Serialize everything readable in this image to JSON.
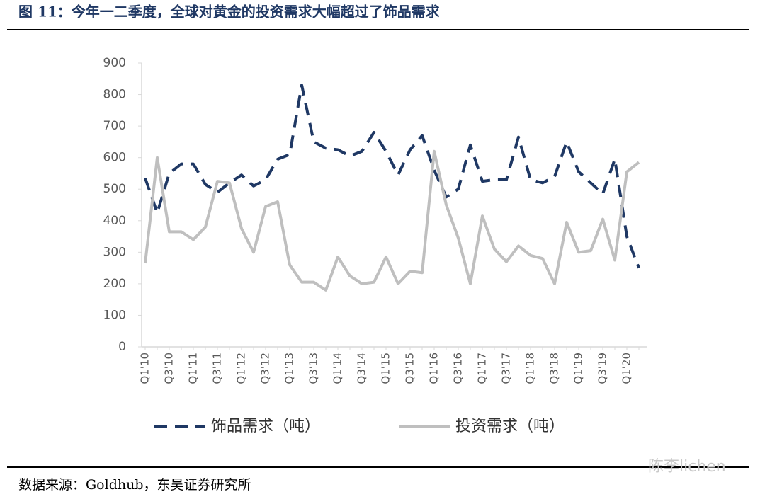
{
  "chart_data": {
    "type": "line",
    "title": "图 11：今年一二季度，全球对黄金的投资需求大幅超过了饰品需求",
    "source": "数据来源：Goldhub，东吴证券研究所",
    "watermark": "陈李lichen",
    "categories": [
      "Q1'10",
      null,
      "Q3'10",
      null,
      "Q1'11",
      null,
      "Q3'11",
      null,
      "Q1'12",
      null,
      "Q3'12",
      null,
      "Q1'13",
      null,
      "Q3'13",
      null,
      "Q1'14",
      null,
      "Q3'14",
      null,
      "Q1'15",
      null,
      "Q3'15",
      null,
      "Q1'16",
      null,
      "Q3'16",
      null,
      "Q1'17",
      null,
      "Q3'17",
      null,
      "Q1'18",
      null,
      "Q3'18",
      null,
      "Q1'19",
      null,
      "Q3'19",
      null,
      "Q1'20",
      null
    ],
    "series": [
      {
        "name": "饰品需求（吨）",
        "color": "#1f3864",
        "dashed": true,
        "values": [
          535,
          425,
          550,
          580,
          580,
          515,
          490,
          520,
          545,
          510,
          530,
          595,
          610,
          830,
          650,
          630,
          625,
          605,
          620,
          680,
          620,
          545,
          625,
          670,
          560,
          475,
          500,
          640,
          525,
          530,
          530,
          665,
          530,
          520,
          540,
          650,
          555,
          520,
          485,
          595,
          350,
          250
        ]
      },
      {
        "name": "投资需求（吨）",
        "color": "#bfbfbf",
        "dashed": false,
        "values": [
          265,
          600,
          365,
          365,
          340,
          380,
          525,
          520,
          375,
          300,
          445,
          460,
          260,
          205,
          205,
          180,
          285,
          225,
          200,
          205,
          285,
          200,
          240,
          235,
          620,
          450,
          345,
          200,
          415,
          310,
          270,
          320,
          290,
          280,
          200,
          395,
          300,
          305,
          405,
          275,
          555,
          585
        ]
      }
    ],
    "ylim": [
      0,
      900
    ],
    "yticks": [
      0,
      100,
      200,
      300,
      400,
      500,
      600,
      700,
      800,
      900
    ],
    "grid": false
  }
}
